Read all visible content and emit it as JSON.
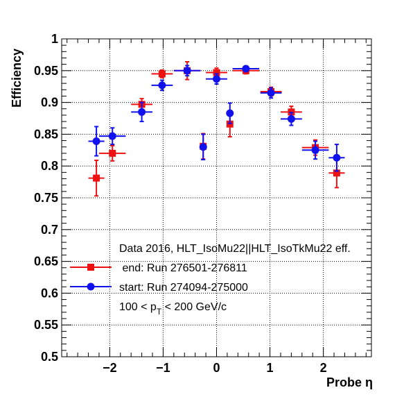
{
  "chart_data": {
    "type": "scatter",
    "title": "",
    "xlabel": "Probe η",
    "ylabel": "Efficiency",
    "xlim": [
      -2.9,
      2.9
    ],
    "ylim": [
      0.5,
      1.0
    ],
    "x_ticks": [
      -2,
      -1,
      0,
      1,
      2
    ],
    "x_tick_labels": [
      "−2",
      "−1",
      "0",
      "1",
      "2"
    ],
    "y_ticks": [
      0.5,
      0.55,
      0.6,
      0.65,
      0.7,
      0.75,
      0.8,
      0.85,
      0.9,
      0.95,
      1.0
    ],
    "y_tick_labels": [
      "0.5",
      "0.55",
      "0.6",
      "0.65",
      "0.7",
      "0.75",
      "0.8",
      "0.85",
      "0.9",
      "0.95",
      "1"
    ],
    "grid": true,
    "legend": {
      "header": "Data 2016, HLT_IsoMu22||HLT_IsoTkMu22 eff.",
      "note_prefix": "100 < p",
      "note_sub": "T",
      "note_suffix": " < 200 GeV/c"
    },
    "series": [
      {
        "name": " end: Run 276501-276811",
        "color": "#ee1111",
        "marker": "square",
        "points": [
          {
            "x": -2.25,
            "y": 0.781,
            "xerr": 0.15,
            "yerr": 0.028
          },
          {
            "x": -1.95,
            "y": 0.82,
            "xerr": 0.25,
            "yerr": 0.012
          },
          {
            "x": -1.4,
            "y": 0.897,
            "xerr": 0.2,
            "yerr": 0.009
          },
          {
            "x": -1.02,
            "y": 0.945,
            "xerr": 0.2,
            "yerr": 0.006
          },
          {
            "x": -0.55,
            "y": 0.95,
            "xerr": 0.25,
            "yerr": 0.014
          },
          {
            "x": -0.25,
            "y": 0.831,
            "xerr": 0.05,
            "yerr": 0.02
          },
          {
            "x": 0.0,
            "y": 0.947,
            "xerr": 0.2,
            "yerr": 0.007
          },
          {
            "x": 0.25,
            "y": 0.866,
            "xerr": 0.05,
            "yerr": 0.02
          },
          {
            "x": 0.55,
            "y": 0.95,
            "xerr": 0.25,
            "yerr": 0.005
          },
          {
            "x": 1.02,
            "y": 0.917,
            "xerr": 0.2,
            "yerr": 0.007
          },
          {
            "x": 1.4,
            "y": 0.885,
            "xerr": 0.2,
            "yerr": 0.009
          },
          {
            "x": 1.85,
            "y": 0.829,
            "xerr": 0.25,
            "yerr": 0.012
          },
          {
            "x": 2.25,
            "y": 0.789,
            "xerr": 0.15,
            "yerr": 0.023
          }
        ]
      },
      {
        "name": "start: Run 274094-275000",
        "color": "#1111ee",
        "marker": "circle",
        "points": [
          {
            "x": -2.25,
            "y": 0.839,
            "xerr": 0.15,
            "yerr": 0.023
          },
          {
            "x": -1.95,
            "y": 0.847,
            "xerr": 0.25,
            "yerr": 0.013
          },
          {
            "x": -1.4,
            "y": 0.885,
            "xerr": 0.2,
            "yerr": 0.015
          },
          {
            "x": -1.02,
            "y": 0.927,
            "xerr": 0.2,
            "yerr": 0.008
          },
          {
            "x": -0.55,
            "y": 0.95,
            "xerr": 0.25,
            "yerr": 0.008
          },
          {
            "x": -0.25,
            "y": 0.83,
            "xerr": 0.05,
            "yerr": 0.02
          },
          {
            "x": 0.0,
            "y": 0.937,
            "xerr": 0.2,
            "yerr": 0.008
          },
          {
            "x": 0.25,
            "y": 0.883,
            "xerr": 0.05,
            "yerr": 0.016
          },
          {
            "x": 0.55,
            "y": 0.953,
            "xerr": 0.25,
            "yerr": 0.004
          },
          {
            "x": 1.02,
            "y": 0.915,
            "xerr": 0.2,
            "yerr": 0.008
          },
          {
            "x": 1.4,
            "y": 0.874,
            "xerr": 0.2,
            "yerr": 0.01
          },
          {
            "x": 1.85,
            "y": 0.825,
            "xerr": 0.25,
            "yerr": 0.014
          },
          {
            "x": 2.25,
            "y": 0.813,
            "xerr": 0.15,
            "yerr": 0.021
          }
        ]
      }
    ]
  }
}
